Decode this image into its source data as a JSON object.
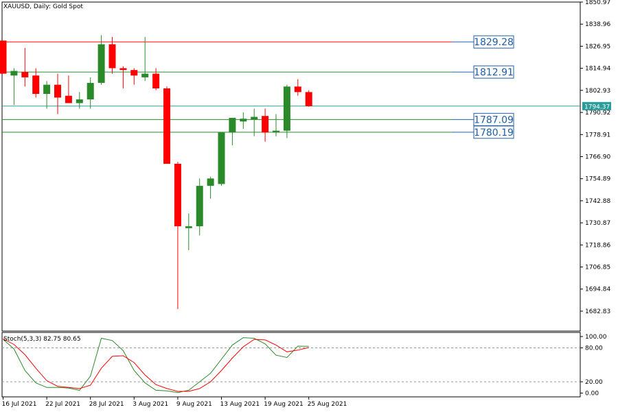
{
  "header": {
    "title": "XAUUSD, Daily:  Gold Spot"
  },
  "stoch_header": {
    "label": "Stoch(5,3,3) 82.75 80.65"
  },
  "chart_data": [
    {
      "type": "candlestick",
      "symbol": "XAUUSD",
      "timeframe": "Daily",
      "description": "Gold Spot",
      "ylim": [
        1672.0,
        1850.97
      ],
      "y_ticks": [
        "1850.97",
        "1838.96",
        "1826.95",
        "1814.94",
        "1802.93",
        "1790.92",
        "1778.91",
        "1766.90",
        "1754.89",
        "1742.88",
        "1730.87",
        "1718.86",
        "1706.85",
        "1694.84",
        "1682.83"
      ],
      "y_tick_values": [
        1850.97,
        1838.96,
        1826.95,
        1814.94,
        1802.93,
        1790.92,
        1778.91,
        1766.9,
        1754.89,
        1742.88,
        1730.87,
        1718.86,
        1706.85,
        1694.84,
        1682.83
      ],
      "x_labels": [
        "16 Jul 2021",
        "22 Jul 2021",
        "28 Jul 2021",
        "3 Aug 2021",
        "9 Aug 2021",
        "13 Aug 2021",
        "19 Aug 2021",
        "25 Aug 2021"
      ],
      "x_label_bar_index": [
        0,
        4,
        8,
        12,
        16,
        20,
        24,
        28
      ],
      "current_price": {
        "label": "1794.37",
        "value": 1794.37,
        "color": "#2a9d9a"
      },
      "colors": {
        "bull": "#2a8a2a",
        "bear": "#ff0000"
      },
      "candles": [
        {
          "o": 1830.0,
          "h": 1830.0,
          "l": 1812.0,
          "c": 1812.0
        },
        {
          "o": 1811.0,
          "h": 1815.0,
          "l": 1795.0,
          "c": 1813.5
        },
        {
          "o": 1813.0,
          "h": 1826.0,
          "l": 1805.0,
          "c": 1810.0
        },
        {
          "o": 1811.0,
          "h": 1815.0,
          "l": 1799.0,
          "c": 1801.0
        },
        {
          "o": 1801.0,
          "h": 1808.0,
          "l": 1793.0,
          "c": 1806.0
        },
        {
          "o": 1806.0,
          "h": 1812.0,
          "l": 1790.0,
          "c": 1799.0
        },
        {
          "o": 1800.0,
          "h": 1811.0,
          "l": 1796.0,
          "c": 1796.0
        },
        {
          "o": 1796.0,
          "h": 1802.0,
          "l": 1793.0,
          "c": 1798.0
        },
        {
          "o": 1798.0,
          "h": 1810.0,
          "l": 1793.0,
          "c": 1807.0
        },
        {
          "o": 1807.0,
          "h": 1833.0,
          "l": 1806.0,
          "c": 1828.0
        },
        {
          "o": 1828.0,
          "h": 1832.0,
          "l": 1812.0,
          "c": 1815.0
        },
        {
          "o": 1815.0,
          "h": 1816.0,
          "l": 1804.0,
          "c": 1814.0
        },
        {
          "o": 1814.0,
          "h": 1815.0,
          "l": 1806.0,
          "c": 1811.0
        },
        {
          "o": 1810.0,
          "h": 1832.0,
          "l": 1808.0,
          "c": 1812.0
        },
        {
          "o": 1812.0,
          "h": 1815.0,
          "l": 1803.0,
          "c": 1804.0
        },
        {
          "o": 1804.0,
          "h": 1805.0,
          "l": 1763.0,
          "c": 1763.0
        },
        {
          "o": 1763.0,
          "h": 1764.0,
          "l": 1684.0,
          "c": 1729.0
        },
        {
          "o": 1728.0,
          "h": 1736.0,
          "l": 1716.0,
          "c": 1729.0
        },
        {
          "o": 1729.0,
          "h": 1755.0,
          "l": 1724.0,
          "c": 1751.0
        },
        {
          "o": 1751.0,
          "h": 1756.0,
          "l": 1744.0,
          "c": 1755.0
        },
        {
          "o": 1752.0,
          "h": 1780.0,
          "l": 1751.0,
          "c": 1780.0
        },
        {
          "o": 1780.0,
          "h": 1788.0,
          "l": 1773.0,
          "c": 1788.0
        },
        {
          "o": 1786.0,
          "h": 1791.0,
          "l": 1782.0,
          "c": 1787.5
        },
        {
          "o": 1787.0,
          "h": 1793.0,
          "l": 1778.0,
          "c": 1788.5
        },
        {
          "o": 1789.0,
          "h": 1793.0,
          "l": 1775.0,
          "c": 1780.0
        },
        {
          "o": 1780.0,
          "h": 1790.0,
          "l": 1778.0,
          "c": 1781.0
        },
        {
          "o": 1781.0,
          "h": 1806.0,
          "l": 1777.0,
          "c": 1805.0
        },
        {
          "o": 1805.0,
          "h": 1809.0,
          "l": 1800.0,
          "c": 1802.0
        },
        {
          "o": 1802.0,
          "h": 1803.0,
          "l": 1794.0,
          "c": 1794.37
        }
      ],
      "levels": [
        {
          "label": "1829.28",
          "value": 1829.28,
          "color": "#ff0000"
        },
        {
          "label": "1812.91",
          "value": 1812.91,
          "color": "#2a8a2a"
        },
        {
          "label": "1787.09",
          "value": 1787.09,
          "color": "#2a8a2a"
        },
        {
          "label": "1780.19",
          "value": 1780.19,
          "color": "#2a8a2a"
        }
      ]
    },
    {
      "type": "line",
      "name": "Stoch(5,3,3)",
      "ylim": [
        0,
        100
      ],
      "y_ticks": [
        "100.00",
        "80.00",
        "20.00",
        "0.00"
      ],
      "y_tick_values": [
        100,
        80,
        20,
        0
      ],
      "levels": [
        80,
        20
      ],
      "series": [
        {
          "color": "#2a8a2a",
          "values": [
            95,
            78,
            40,
            18,
            10,
            10,
            9,
            5,
            30,
            97,
            93,
            75,
            40,
            18,
            5,
            4,
            1,
            5,
            20,
            35,
            60,
            85,
            98,
            97,
            87,
            67,
            63,
            83,
            82.75
          ]
        },
        {
          "color": "#ff0000",
          "values": [
            96,
            86,
            68,
            44,
            22,
            12,
            10,
            8,
            14,
            44,
            65,
            66,
            54,
            32,
            15,
            8,
            3,
            3,
            8,
            20,
            40,
            62,
            82,
            95,
            94,
            85,
            73,
            76,
            80.65
          ]
        }
      ]
    }
  ]
}
